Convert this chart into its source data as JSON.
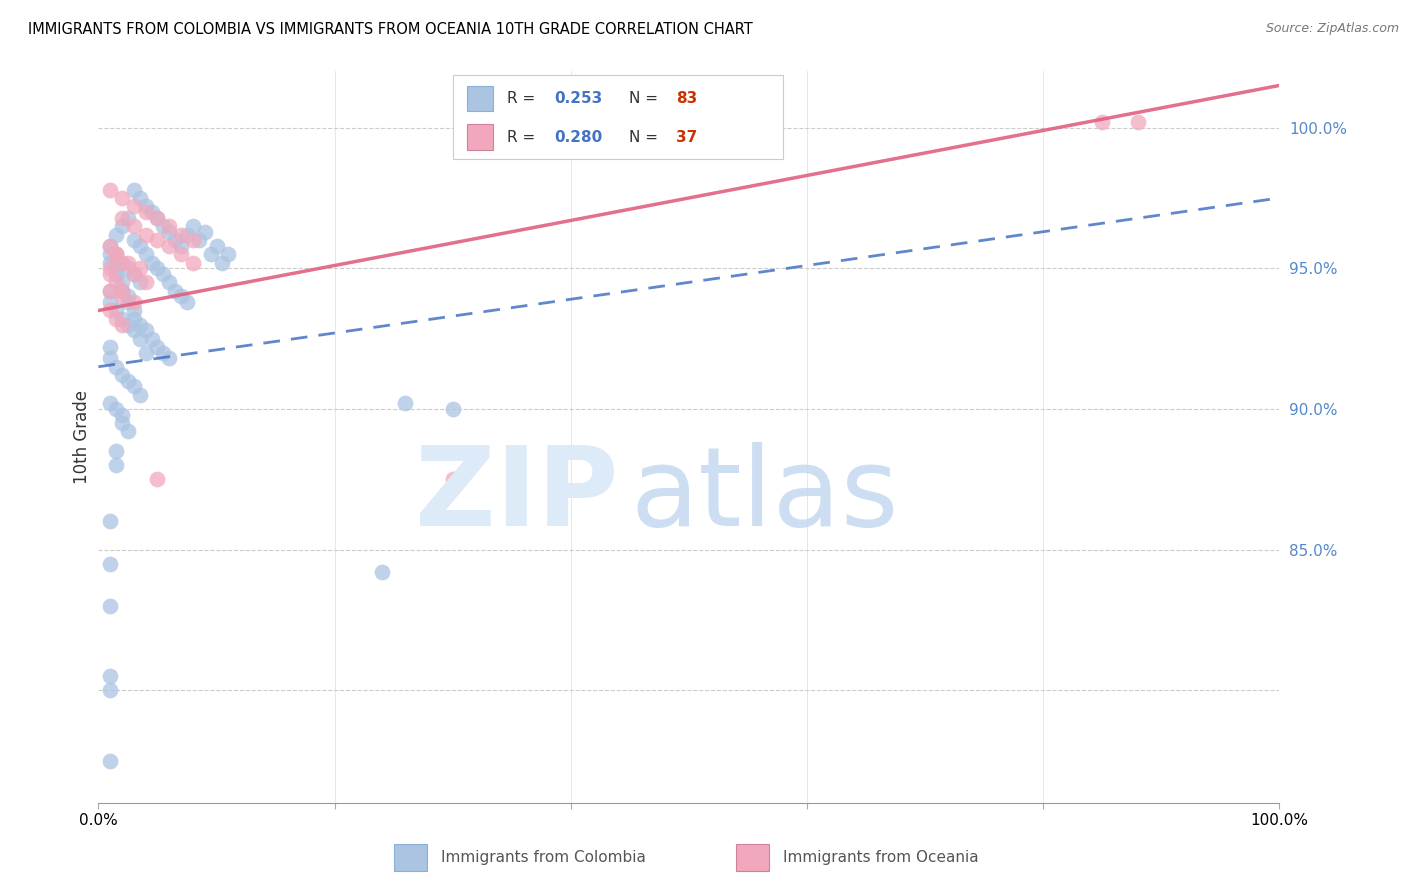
{
  "title": "IMMIGRANTS FROM COLOMBIA VS IMMIGRANTS FROM OCEANIA 10TH GRADE CORRELATION CHART",
  "source": "Source: ZipAtlas.com",
  "ylabel": "10th Grade",
  "R_colombia": 0.253,
  "N_colombia": 83,
  "R_oceania": 0.28,
  "N_oceania": 37,
  "colombia_color": "#aac4e2",
  "oceania_color": "#f2a8bc",
  "colombia_line_color": "#4472c4",
  "oceania_line_color": "#e06080",
  "legend1_label": "Immigrants from Colombia",
  "legend2_label": "Immigrants from Oceania",
  "colombia_scatter_x": [
    3,
    3.5,
    4,
    4.5,
    5,
    5.5,
    6,
    6.5,
    7,
    7.5,
    8,
    8.5,
    9,
    9.5,
    10,
    10.5,
    11,
    1.5,
    2,
    2.5,
    3,
    3.5,
    4,
    4.5,
    5,
    5.5,
    6,
    6.5,
    7,
    7.5,
    1,
    1,
    1.5,
    1.5,
    2,
    2,
    2.5,
    2.5,
    3,
    3,
    3.5,
    4,
    4.5,
    5,
    5.5,
    6,
    1,
    1.5,
    2,
    2.5,
    3,
    3.5,
    1,
    1,
    1.5,
    2,
    2.5,
    3,
    3.5,
    4,
    1,
    1,
    1.5,
    2,
    2.5,
    3,
    3.5,
    1,
    1.5,
    2,
    2,
    2.5,
    26,
    30,
    1.5,
    1.5,
    1,
    1,
    24,
    1,
    1,
    1,
    1
  ],
  "colombia_scatter_y": [
    97.8,
    97.5,
    97.2,
    97.0,
    96.8,
    96.5,
    96.3,
    96.0,
    95.8,
    96.2,
    96.5,
    96.0,
    96.3,
    95.5,
    95.8,
    95.2,
    95.5,
    96.2,
    96.5,
    96.8,
    96.0,
    95.8,
    95.5,
    95.2,
    95.0,
    94.8,
    94.5,
    94.2,
    94.0,
    93.8,
    95.5,
    95.2,
    95.0,
    94.8,
    94.5,
    94.2,
    94.0,
    93.8,
    93.5,
    93.2,
    93.0,
    92.8,
    92.5,
    92.2,
    92.0,
    91.8,
    95.8,
    95.5,
    95.2,
    95.0,
    94.8,
    94.5,
    94.2,
    93.8,
    93.5,
    93.2,
    93.0,
    92.8,
    92.5,
    92.0,
    92.2,
    91.8,
    91.5,
    91.2,
    91.0,
    90.8,
    90.5,
    90.2,
    90.0,
    89.8,
    89.5,
    89.2,
    90.2,
    90.0,
    88.5,
    88.0,
    86.0,
    84.5,
    84.2,
    80.5,
    83.0,
    80.0,
    77.5
  ],
  "oceania_scatter_x": [
    1,
    2,
    3,
    4,
    5,
    6,
    7,
    8,
    2,
    3,
    4,
    5,
    6,
    7,
    8,
    1.5,
    2.5,
    3.5,
    1,
    1.5,
    2,
    3,
    4,
    1,
    2,
    3,
    1,
    1,
    1.5,
    2,
    30,
    88,
    85,
    5,
    1,
    1.5,
    2
  ],
  "oceania_scatter_y": [
    97.8,
    97.5,
    97.2,
    97.0,
    96.8,
    96.5,
    96.2,
    96.0,
    96.8,
    96.5,
    96.2,
    96.0,
    95.8,
    95.5,
    95.2,
    95.5,
    95.2,
    95.0,
    95.8,
    95.5,
    95.2,
    94.8,
    94.5,
    94.2,
    94.0,
    93.8,
    95.0,
    94.8,
    94.5,
    94.2,
    87.5,
    100.2,
    100.2,
    87.5,
    93.5,
    93.2,
    93.0
  ],
  "colombia_line": [
    0,
    100,
    91.5,
    97.5
  ],
  "oceania_line": [
    0,
    100,
    93.5,
    101.5
  ],
  "xlim": [
    0,
    100
  ],
  "ylim": [
    76,
    102
  ],
  "y_ticks": [
    80,
    85,
    90,
    95,
    100
  ],
  "y_tick_labels": [
    "",
    "85.0%",
    "90.0%",
    "95.0%",
    "100.0%"
  ]
}
